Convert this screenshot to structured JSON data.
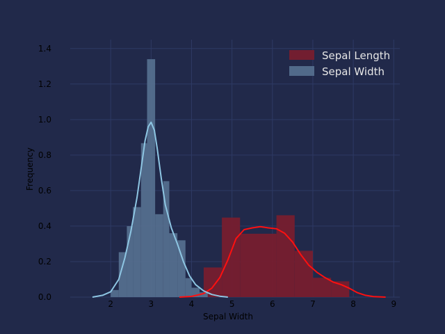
{
  "chart_data": {
    "type": "histogram",
    "xlabel": "Sepal Width",
    "ylabel": "Frequency",
    "xlim": [
      1.0,
      9.15
    ],
    "ylim": [
      0,
      1.45
    ],
    "xticks": [
      2,
      3,
      4,
      5,
      6,
      7,
      8,
      9
    ],
    "yticks": [
      0.0,
      0.2,
      0.4,
      0.6,
      0.8,
      1.0,
      1.2,
      1.4
    ],
    "grid": true,
    "legend_position": "top-right",
    "background_color": "#21294a",
    "grid_color": "#2e3a64",
    "series": [
      {
        "name": "Sepal Length",
        "color": "#7a1d2e",
        "kde_color": "#ff1010",
        "bins": [
          {
            "x0": 4.3,
            "x1": 4.75,
            "y": 0.167
          },
          {
            "x0": 4.75,
            "x1": 5.2,
            "y": 0.448
          },
          {
            "x0": 5.2,
            "x1": 6.1,
            "y": 0.357
          },
          {
            "x0": 6.1,
            "x1": 6.55,
            "y": 0.461
          },
          {
            "x0": 6.55,
            "x1": 7.0,
            "y": 0.261
          },
          {
            "x0": 7.0,
            "x1": 7.45,
            "y": 0.109
          },
          {
            "x0": 7.45,
            "x1": 7.9,
            "y": 0.089
          }
        ],
        "kde": {
          "x": [
            3.7,
            4.0,
            4.3,
            4.5,
            4.7,
            4.9,
            5.1,
            5.3,
            5.5,
            5.7,
            5.9,
            6.1,
            6.3,
            6.5,
            6.7,
            6.9,
            7.1,
            7.3,
            7.5,
            7.7,
            7.9,
            8.1,
            8.3,
            8.5,
            8.8
          ],
          "y": [
            0.0,
            0.004,
            0.02,
            0.05,
            0.11,
            0.21,
            0.33,
            0.38,
            0.39,
            0.397,
            0.39,
            0.385,
            0.36,
            0.31,
            0.24,
            0.18,
            0.14,
            0.11,
            0.085,
            0.07,
            0.05,
            0.025,
            0.01,
            0.003,
            0.0
          ]
        }
      },
      {
        "name": "Sepal Width",
        "color": "#56708f",
        "kde_color": "#8ec6e3",
        "bins": [
          {
            "x0": 2.0,
            "x1": 2.2,
            "y": 0.04
          },
          {
            "x0": 2.2,
            "x1": 2.4,
            "y": 0.253
          },
          {
            "x0": 2.4,
            "x1": 2.55,
            "y": 0.4
          },
          {
            "x0": 2.55,
            "x1": 2.75,
            "y": 0.507
          },
          {
            "x0": 2.75,
            "x1": 2.9,
            "y": 0.867
          },
          {
            "x0": 2.9,
            "x1": 3.1,
            "y": 1.34
          },
          {
            "x0": 3.1,
            "x1": 3.3,
            "y": 0.467
          },
          {
            "x0": 3.3,
            "x1": 3.45,
            "y": 0.653
          },
          {
            "x0": 3.45,
            "x1": 3.65,
            "y": 0.36
          },
          {
            "x0": 3.65,
            "x1": 3.85,
            "y": 0.32
          },
          {
            "x0": 3.85,
            "x1": 4.0,
            "y": 0.107
          },
          {
            "x0": 4.0,
            "x1": 4.2,
            "y": 0.053
          },
          {
            "x0": 4.2,
            "x1": 4.4,
            "y": 0.027
          }
        ],
        "kde": {
          "x": [
            1.55,
            1.8,
            2.0,
            2.2,
            2.35,
            2.5,
            2.65,
            2.75,
            2.85,
            2.93,
            3.0,
            3.08,
            3.15,
            3.25,
            3.35,
            3.5,
            3.65,
            3.8,
            3.95,
            4.1,
            4.3,
            4.5,
            4.7,
            4.9
          ],
          "y": [
            0.0,
            0.01,
            0.03,
            0.1,
            0.22,
            0.37,
            0.56,
            0.72,
            0.88,
            0.96,
            0.985,
            0.94,
            0.84,
            0.67,
            0.52,
            0.39,
            0.3,
            0.2,
            0.12,
            0.07,
            0.035,
            0.015,
            0.005,
            0.0
          ]
        }
      }
    ]
  }
}
